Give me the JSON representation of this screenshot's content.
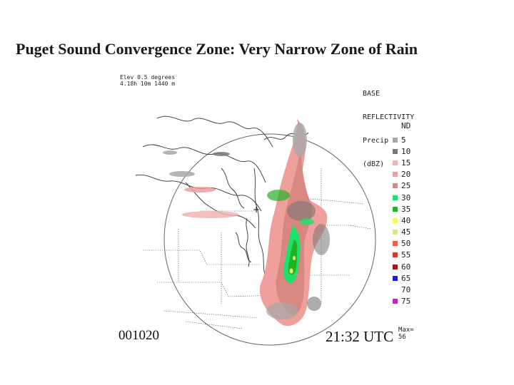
{
  "title": "Puget Sound Convergence Zone:  Very Narrow Zone of Rain",
  "radar": {
    "elevation_line": "Elev 0.5 degrees",
    "height_line": "4.18h 10m 1440 m",
    "product_lines": [
      "BASE",
      "REFLECTIVITY",
      "Precip",
      "(dBZ)"
    ],
    "nd_label": "ND",
    "date_stamp": "001020",
    "time_stamp": "21:32 UTC",
    "max_label": "Max=",
    "max_value": "56"
  },
  "legend": [
    {
      "label": "5",
      "color": "#a8a8a8"
    },
    {
      "label": "10",
      "color": "#767676"
    },
    {
      "label": "15",
      "color": "#f2b3b0"
    },
    {
      "label": "20",
      "color": "#ef9f9c"
    },
    {
      "label": "25",
      "color": "#d98781"
    },
    {
      "label": "30",
      "color": "#1fe06a"
    },
    {
      "label": "35",
      "color": "#23b223"
    },
    {
      "label": "40",
      "color": "#f6f66a"
    },
    {
      "label": "45",
      "color": "#e3e38a"
    },
    {
      "label": "50",
      "color": "#ee5a50"
    },
    {
      "label": "55",
      "color": "#d53a32"
    },
    {
      "label": "60",
      "color": "#b01010"
    },
    {
      "label": "65",
      "color": "#1b1bd6"
    },
    {
      "label": "70",
      "color": "#ffffff"
    },
    {
      "label": "75",
      "color": "#d31ad3"
    }
  ]
}
